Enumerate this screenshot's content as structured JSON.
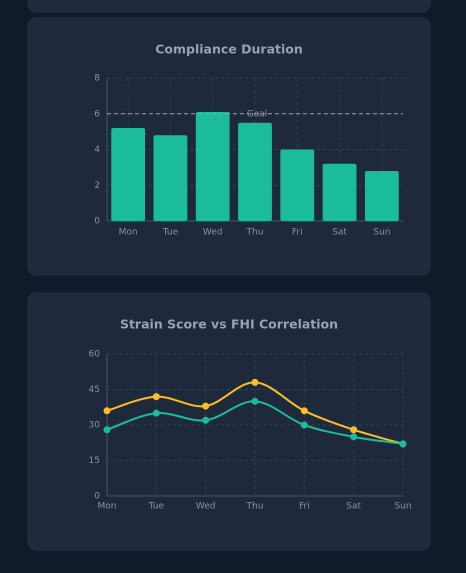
{
  "chart_data": [
    {
      "type": "bar",
      "title": "Compliance Duration",
      "categories": [
        "Mon",
        "Tue",
        "Wed",
        "Thu",
        "Fri",
        "Sat",
        "Sun"
      ],
      "values": [
        5.2,
        4.8,
        6.1,
        5.5,
        4.0,
        3.2,
        2.8
      ],
      "color": "#1abc9c",
      "ylim": [
        0,
        8
      ],
      "yticks": [
        0,
        2,
        4,
        6,
        8
      ],
      "grid": true,
      "goal": {
        "value": 6,
        "label": "Goal"
      }
    },
    {
      "type": "line",
      "title": "Strain Score vs FHI Correlation",
      "categories": [
        "Mon",
        "Tue",
        "Wed",
        "Thu",
        "Fri",
        "Sat",
        "Sun"
      ],
      "series": [
        {
          "color": "#fbbf24",
          "values": [
            36,
            42,
            38,
            48,
            36,
            28,
            22
          ]
        },
        {
          "color": "#1abc9c",
          "values": [
            28,
            35,
            32,
            40,
            30,
            25,
            22
          ]
        }
      ],
      "ylim": [
        0,
        60
      ],
      "yticks": [
        0,
        15,
        30,
        45,
        60
      ],
      "grid": true
    }
  ]
}
